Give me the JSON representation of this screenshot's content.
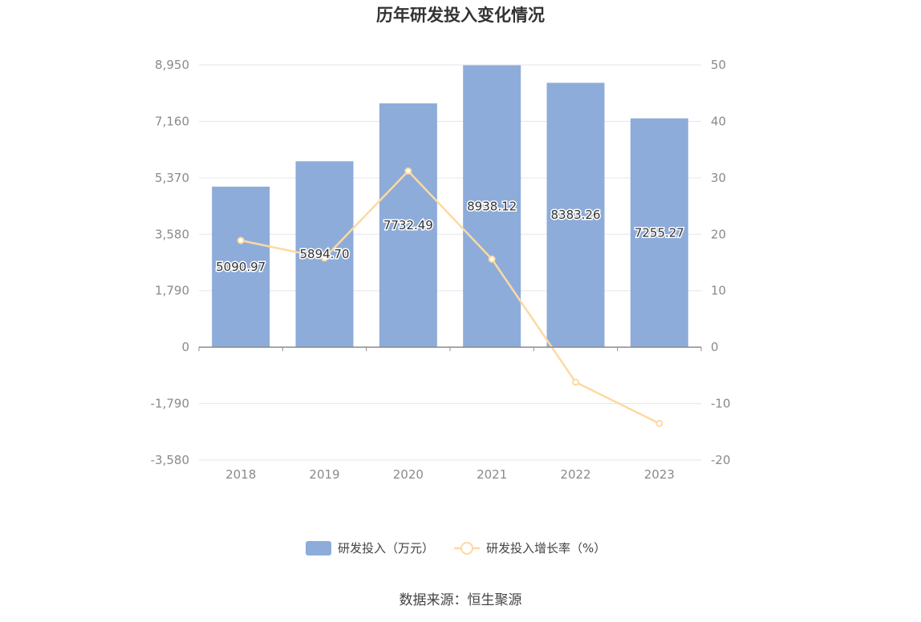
{
  "chart_data": {
    "type": "bar",
    "title": "历年研发投入变化情况",
    "categories": [
      "2018",
      "2019",
      "2020",
      "2021",
      "2022",
      "2023"
    ],
    "series": [
      {
        "name": "研发投入（万元）",
        "type": "bar",
        "axis": "left",
        "values": [
          5090.97,
          5894.7,
          7732.49,
          8938.12,
          8383.26,
          7255.27
        ],
        "labels": [
          "5090.97",
          "5894.70",
          "7732.49",
          "8938.12",
          "8383.26",
          "7255.27"
        ],
        "color": "#8eacda"
      },
      {
        "name": "研发投入增长率（%）",
        "type": "line",
        "axis": "right",
        "values": [
          18.9,
          15.8,
          31.2,
          15.6,
          -6.2,
          -13.5
        ],
        "color": "#fdd9a0"
      }
    ],
    "y_left": {
      "min": -3580,
      "max": 8950,
      "ticks": [
        "8,950",
        "7,160",
        "5,370",
        "3,580",
        "1,790",
        "0",
        "-1,790",
        "-3,580"
      ]
    },
    "y_right": {
      "min": -20,
      "max": 50,
      "ticks": [
        "50",
        "40",
        "30",
        "20",
        "10",
        "0",
        "-10",
        "-20"
      ]
    },
    "grid": true,
    "legend": "bottom-center",
    "source": "数据来源：恒生聚源"
  }
}
